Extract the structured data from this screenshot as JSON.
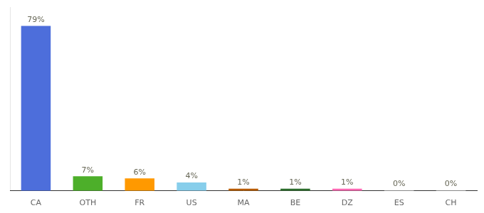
{
  "chart_data": {
    "type": "bar",
    "categories": [
      "CA",
      "OTH",
      "FR",
      "US",
      "MA",
      "BE",
      "DZ",
      "ES",
      "CH"
    ],
    "values": [
      79,
      7,
      6,
      4,
      1,
      1,
      1,
      0.3,
      0.3
    ],
    "value_labels": [
      "79%",
      "7%",
      "6%",
      "4%",
      "1%",
      "1%",
      "1%",
      "0%",
      "0%"
    ],
    "colors": [
      "#4d6edb",
      "#4daf2a",
      "#ff9900",
      "#87ceeb",
      "#b85c00",
      "#2d6e2d",
      "#ff69b4",
      "#cccccc",
      "#cccccc"
    ],
    "ylim": [
      0,
      88
    ],
    "data_labels": true,
    "tick_labels": "x",
    "grid": false
  }
}
